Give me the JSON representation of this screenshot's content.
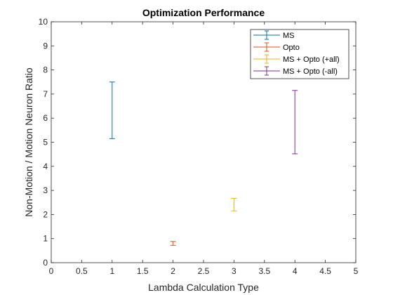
{
  "chart_data": {
    "type": "errorbar",
    "title": "Optimization Performance",
    "xlabel": "Lambda Calculation Type",
    "ylabel": "Non-Motion / Motion Neuron Ratio",
    "xlim": [
      0,
      5
    ],
    "ylim": [
      0,
      10
    ],
    "xticks": [
      0,
      0.5,
      1,
      1.5,
      2,
      2.5,
      3,
      3.5,
      4,
      4.5,
      5
    ],
    "xtick_labels": [
      "0",
      "0.5",
      "1",
      "1.5",
      "2",
      "2.5",
      "3",
      "3.5",
      "4",
      "4.5",
      "5"
    ],
    "yticks": [
      0,
      1,
      2,
      3,
      4,
      5,
      6,
      7,
      8,
      9,
      10
    ],
    "ytick_labels": [
      "0",
      "1",
      "2",
      "3",
      "4",
      "5",
      "6",
      "7",
      "8",
      "9",
      "10"
    ],
    "grid": false,
    "legend_position": "top-right",
    "series": [
      {
        "name": "MS",
        "color": "#0072BD",
        "x": 1,
        "low": 5.15,
        "high": 7.5
      },
      {
        "name": "Opto",
        "color": "#D95319",
        "x": 2,
        "low": 0.72,
        "high": 0.88
      },
      {
        "name": "MS + Opto (+all)",
        "color": "#EDB120",
        "x": 3,
        "low": 2.15,
        "high": 2.67
      },
      {
        "name": "MS + Opto (-all)",
        "color": "#7E2F8E",
        "x": 4,
        "low": 4.52,
        "high": 7.15
      }
    ]
  }
}
